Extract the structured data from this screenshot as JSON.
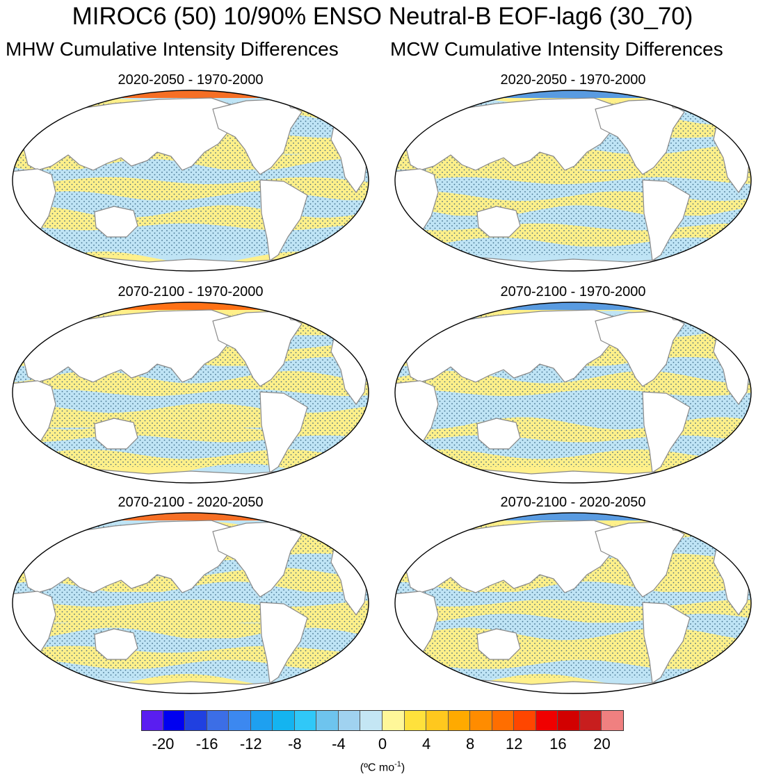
{
  "figure": {
    "title": "MIROC6 (50) 10/90% ENSO Neutral-B EOF-lag6 (30_70)",
    "left_column_title": "MHW Cumulative Intensity Differences",
    "right_column_title": "MCW Cumulative Intensity Differences"
  },
  "panels": [
    {
      "title": "2020-2050 - 1970-2000",
      "variable": "MHW",
      "pattern": [
        0,
        1,
        0,
        1,
        1,
        0,
        1,
        0,
        1,
        0,
        0,
        1
      ]
    },
    {
      "title": "2020-2050 - 1970-2000",
      "variable": "MCW",
      "pattern": [
        1,
        0,
        1,
        0,
        1,
        1,
        0,
        1,
        0,
        1,
        0,
        0
      ]
    },
    {
      "title": "2070-2100 - 1970-2000",
      "variable": "MHW",
      "pattern": [
        1,
        1,
        0,
        1,
        0,
        1,
        0,
        1,
        1,
        0,
        1,
        0
      ]
    },
    {
      "title": "2070-2100 - 1970-2000",
      "variable": "MCW",
      "pattern": [
        1,
        0,
        1,
        1,
        0,
        1,
        0,
        0,
        1,
        0,
        1,
        1
      ]
    },
    {
      "title": "2070-2100 - 2020-2050",
      "variable": "MHW",
      "pattern": [
        0,
        1,
        1,
        0,
        1,
        0,
        1,
        1,
        0,
        1,
        0,
        1
      ]
    },
    {
      "title": "2070-2100 - 2020-2050",
      "variable": "MCW",
      "pattern": [
        1,
        1,
        0,
        1,
        1,
        0,
        1,
        0,
        1,
        1,
        0,
        1
      ]
    }
  ],
  "colorbar": {
    "colors": [
      "#5a1ef0",
      "#0000f0",
      "#2040e0",
      "#3c6ee6",
      "#3c88f0",
      "#1ea0f0",
      "#14b4f0",
      "#30c8f8",
      "#6ec4ee",
      "#a0d2f0",
      "#c4e6f4",
      "#fff799",
      "#ffe13c",
      "#ffc81e",
      "#ffaa00",
      "#ff8c00",
      "#ff6e00",
      "#ff4600",
      "#f00000",
      "#d20000",
      "#c81e1e",
      "#f08080"
    ],
    "tick_labels": [
      "-20",
      "-16",
      "-12",
      "-8",
      "-4",
      "0",
      "4",
      "8",
      "12",
      "16",
      "20"
    ],
    "units_label": "(ºC mo",
    "units_exp": "-1",
    "units_close": ")"
  },
  "palette": {
    "land": "#ffffff",
    "coast": "#888888",
    "warm": "#fff08a",
    "cool": "#bfe4f5",
    "stipple": "#2a5a7a"
  }
}
